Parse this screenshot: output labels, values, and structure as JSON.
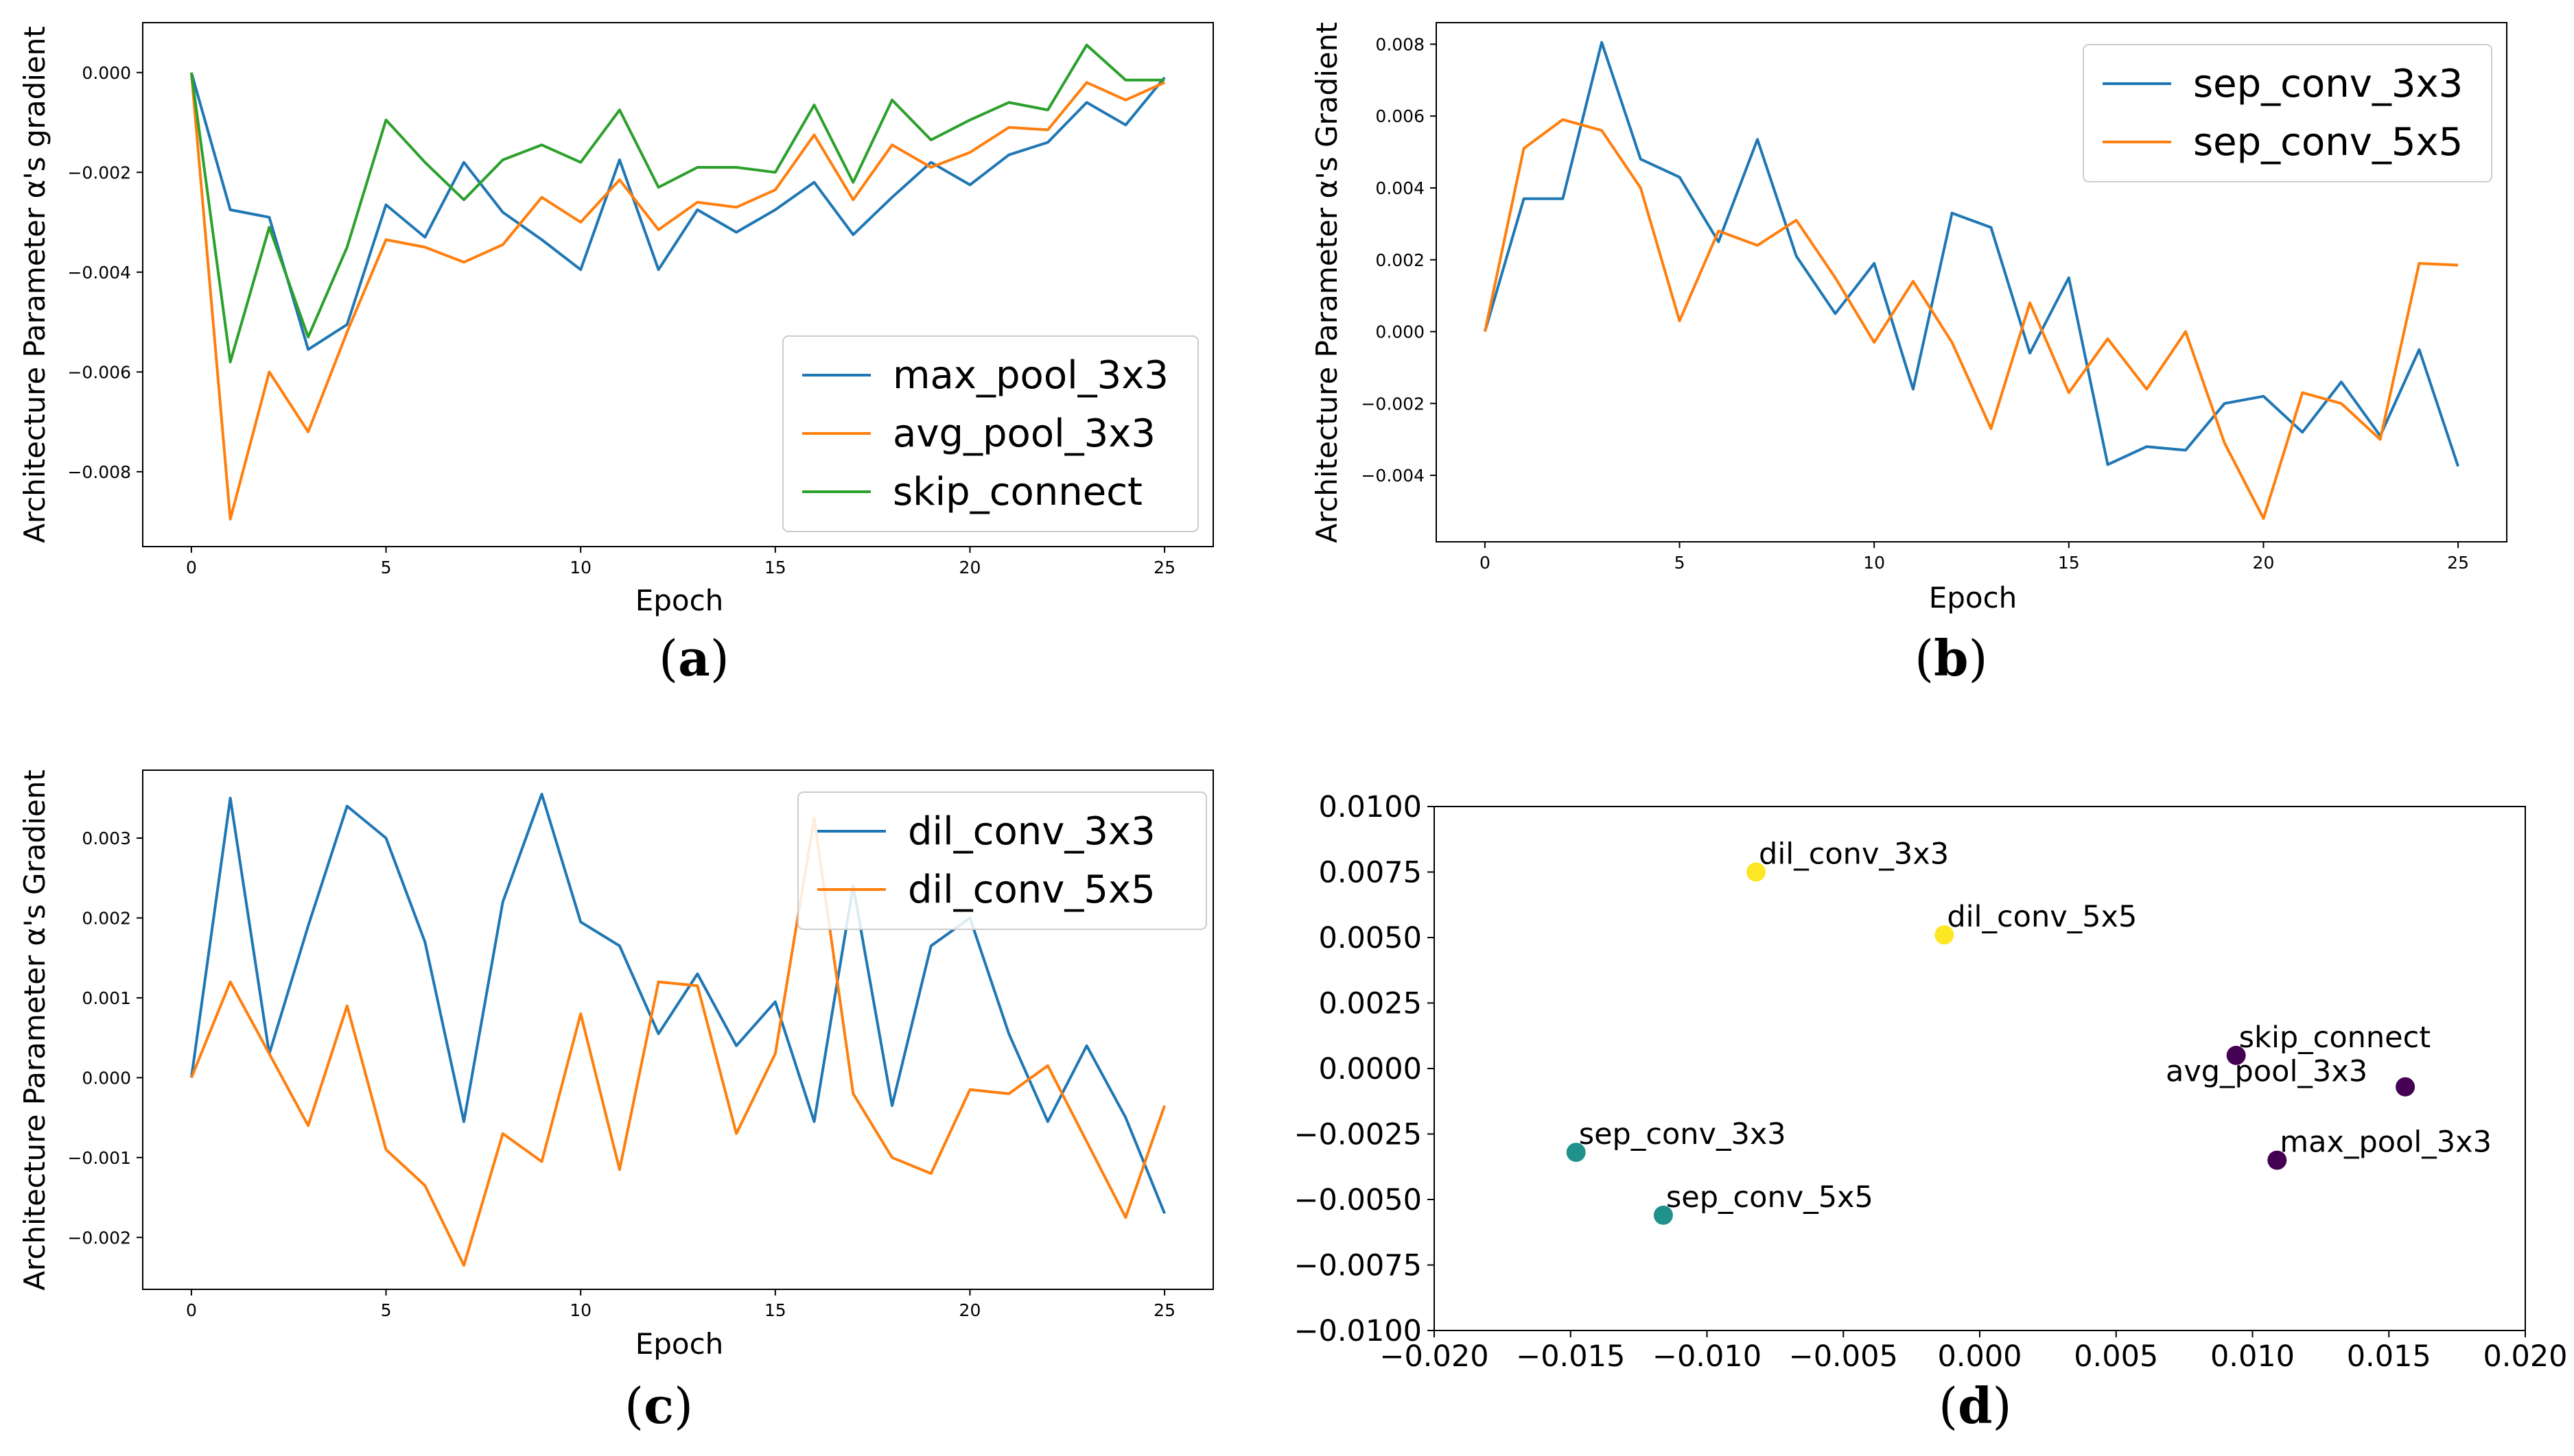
{
  "chart_data": [
    {
      "type": "line",
      "caption_letter": "a",
      "caption_open": "(",
      "caption_close": ")",
      "xlabel": "Epoch",
      "ylabel": "Architecture Parameter α's gradient",
      "xlim": [
        -1.25,
        26.25
      ],
      "ylim": [
        -0.0095,
        0.001
      ],
      "xticks": [
        0,
        5,
        10,
        15,
        20,
        25
      ],
      "xtick_labels": [
        "0",
        "5",
        "10",
        "15",
        "20",
        "25"
      ],
      "yticks": [
        0,
        -0.002,
        -0.004,
        -0.006,
        -0.008
      ],
      "ytick_labels": [
        "0.000",
        "−0.002",
        "−0.004",
        "−0.006",
        "−0.008"
      ],
      "legend_position": "lower-right",
      "x": [
        0,
        1,
        2,
        3,
        4,
        5,
        6,
        7,
        8,
        9,
        10,
        11,
        12,
        13,
        14,
        15,
        16,
        17,
        18,
        19,
        20,
        21,
        22,
        23,
        24,
        25
      ],
      "series": [
        {
          "name": "max_pool_3x3",
          "color": "#1f77b4",
          "values": [
            0,
            -0.00275,
            -0.0029,
            -0.00555,
            -0.00505,
            -0.00265,
            -0.0033,
            -0.0018,
            -0.0028,
            -0.00335,
            -0.00395,
            -0.00175,
            -0.00395,
            -0.00275,
            -0.0032,
            -0.00275,
            -0.0022,
            -0.00325,
            -0.0025,
            -0.0018,
            -0.00225,
            -0.00165,
            -0.0014,
            -0.0006,
            -0.00105,
            -0.0001
          ]
        },
        {
          "name": "avg_pool_3x3",
          "color": "#ff7f0e",
          "values": [
            0,
            -0.00895,
            -0.006,
            -0.0072,
            -0.0052,
            -0.00335,
            -0.0035,
            -0.0038,
            -0.00345,
            -0.0025,
            -0.003,
            -0.00215,
            -0.00315,
            -0.0026,
            -0.0027,
            -0.00235,
            -0.00125,
            -0.00255,
            -0.00145,
            -0.0019,
            -0.0016,
            -0.0011,
            -0.00115,
            -0.0002,
            -0.00055,
            -0.0002
          ]
        },
        {
          "name": "skip_connect",
          "color": "#2ca02c",
          "values": [
            0,
            -0.0058,
            -0.0031,
            -0.0053,
            -0.0035,
            -0.00095,
            -0.0018,
            -0.00255,
            -0.00175,
            -0.00145,
            -0.0018,
            -0.00075,
            -0.0023,
            -0.0019,
            -0.0019,
            -0.002,
            -0.00065,
            -0.0022,
            -0.00055,
            -0.00135,
            -0.00095,
            -0.0006,
            -0.00075,
            0.00055,
            -0.00015,
            -0.00015
          ]
        }
      ]
    },
    {
      "type": "line",
      "caption_letter": "b",
      "caption_open": "(",
      "caption_close": ")",
      "xlabel": "Epoch",
      "ylabel": "Architecture Parameter α's Gradient",
      "xlim": [
        -1.25,
        26.25
      ],
      "ylim": [
        -0.00585,
        0.0086
      ],
      "xticks": [
        0,
        5,
        10,
        15,
        20,
        25
      ],
      "xtick_labels": [
        "0",
        "5",
        "10",
        "15",
        "20",
        "25"
      ],
      "yticks": [
        0.008,
        0.006,
        0.004,
        0.002,
        0,
        -0.002,
        -0.004
      ],
      "ytick_labels": [
        "0.008",
        "0.006",
        "0.004",
        "0.002",
        "0.000",
        "−0.002",
        "−0.004"
      ],
      "legend_position": "upper-right",
      "x": [
        0,
        1,
        2,
        3,
        4,
        5,
        6,
        7,
        8,
        9,
        10,
        11,
        12,
        13,
        14,
        15,
        16,
        17,
        18,
        19,
        20,
        21,
        22,
        23,
        24,
        25
      ],
      "series": [
        {
          "name": "sep_conv_3x3",
          "color": "#1f77b4",
          "values": [
            0,
            0.0037,
            0.0037,
            0.00805,
            0.0048,
            0.0043,
            0.0025,
            0.00535,
            0.0021,
            0.0005,
            0.0019,
            -0.0016,
            0.0033,
            0.0029,
            -0.0006,
            0.0015,
            -0.0037,
            -0.0032,
            -0.0033,
            -0.002,
            -0.0018,
            -0.0028,
            -0.0014,
            -0.0029,
            -0.0005,
            -0.00375
          ]
        },
        {
          "name": "sep_conv_5x5",
          "color": "#ff7f0e",
          "values": [
            0,
            0.0051,
            0.0059,
            0.0056,
            0.004,
            0.0003,
            0.0028,
            0.0024,
            0.0031,
            0.0015,
            -0.0003,
            0.0014,
            -0.0003,
            -0.0027,
            0.0008,
            -0.0017,
            -0.0002,
            -0.0016,
            0,
            -0.0031,
            -0.0052,
            -0.0017,
            -0.002,
            -0.003,
            0.0019,
            0.00185
          ]
        }
      ]
    },
    {
      "type": "line",
      "caption_letter": "c",
      "caption_open": "(",
      "caption_close": ")",
      "xlabel": "Epoch",
      "ylabel": "Architecture Parameter α's Gradient",
      "xlim": [
        -1.25,
        26.25
      ],
      "ylim": [
        -0.00265,
        0.00385
      ],
      "xticks": [
        0,
        5,
        10,
        15,
        20,
        25
      ],
      "xtick_labels": [
        "0",
        "5",
        "10",
        "15",
        "20",
        "25"
      ],
      "yticks": [
        0.003,
        0.002,
        0.001,
        0,
        -0.001,
        -0.002
      ],
      "ytick_labels": [
        "0.003",
        "0.002",
        "0.001",
        "0.000",
        "−0.001",
        "−0.002"
      ],
      "legend_position": "upper-right",
      "x": [
        0,
        1,
        2,
        3,
        4,
        5,
        6,
        7,
        8,
        9,
        10,
        11,
        12,
        13,
        14,
        15,
        16,
        17,
        18,
        19,
        20,
        21,
        22,
        23,
        24,
        25
      ],
      "series": [
        {
          "name": "dil_conv_3x3",
          "color": "#1f77b4",
          "values": [
            0,
            0.0035,
            0.0003,
            0.0019,
            0.0034,
            0.003,
            0.0017,
            -0.00055,
            0.0022,
            0.00355,
            0.00195,
            0.00165,
            0.00055,
            0.0013,
            0.0004,
            0.00095,
            -0.00055,
            0.0024,
            -0.00035,
            0.00165,
            0.002,
            0.00055,
            -0.00055,
            0.0004,
            -0.0005,
            -0.0017
          ]
        },
        {
          "name": "dil_conv_5x5",
          "color": "#ff7f0e",
          "values": [
            0,
            0.0012,
            0.0003,
            -0.0006,
            0.0009,
            -0.0009,
            -0.00135,
            -0.00235,
            -0.0007,
            -0.00105,
            0.0008,
            -0.00115,
            0.0012,
            0.00115,
            -0.0007,
            0.0003,
            0.00325,
            -0.0002,
            -0.001,
            -0.0012,
            -0.00015,
            -0.0002,
            0.00015,
            -0.0008,
            -0.00175,
            -0.00035
          ]
        }
      ]
    },
    {
      "type": "scatter",
      "caption_letter": "d",
      "caption_open": "(",
      "caption_close": ")",
      "xlim": [
        -0.02,
        0.02
      ],
      "ylim": [
        -0.01,
        0.01
      ],
      "xticks": [
        -0.02,
        -0.015,
        -0.01,
        -0.005,
        0,
        0.005,
        0.01,
        0.015,
        0.02
      ],
      "xtick_labels": [
        "−0.020",
        "−0.015",
        "−0.010",
        "−0.005",
        "0.000",
        "0.005",
        "0.010",
        "0.015",
        "0.020"
      ],
      "yticks": [
        0.01,
        0.0075,
        0.005,
        0.0025,
        0,
        -0.0025,
        -0.005,
        -0.0075,
        -0.01
      ],
      "ytick_labels": [
        "0.0100",
        "0.0075",
        "0.0050",
        "0.0025",
        "0.0000",
        "−0.0025",
        "−0.0050",
        "−0.0075",
        "−0.0100"
      ],
      "points": [
        {
          "label": "dil_conv_3x3",
          "x": -0.0082,
          "y": 0.0075,
          "color": "#fde725",
          "label_side": "right"
        },
        {
          "label": "dil_conv_5x5",
          "x": -0.0013,
          "y": 0.0051,
          "color": "#fde725",
          "label_side": "right"
        },
        {
          "label": "skip_connect",
          "x": 0.0094,
          "y": 0.0005,
          "color": "#440154",
          "label_side": "right"
        },
        {
          "label": "avg_pool_3x3",
          "x": 0.0156,
          "y": -0.0007,
          "color": "#440154",
          "label_side": "left"
        },
        {
          "label": "max_pool_3x3",
          "x": 0.0109,
          "y": -0.0035,
          "color": "#440154",
          "label_side": "right"
        },
        {
          "label": "sep_conv_3x3",
          "x": -0.0148,
          "y": -0.0032,
          "color": "#21918c",
          "label_side": "right"
        },
        {
          "label": "sep_conv_5x5",
          "x": -0.0116,
          "y": -0.0056,
          "color": "#21918c",
          "label_side": "right"
        }
      ]
    }
  ]
}
